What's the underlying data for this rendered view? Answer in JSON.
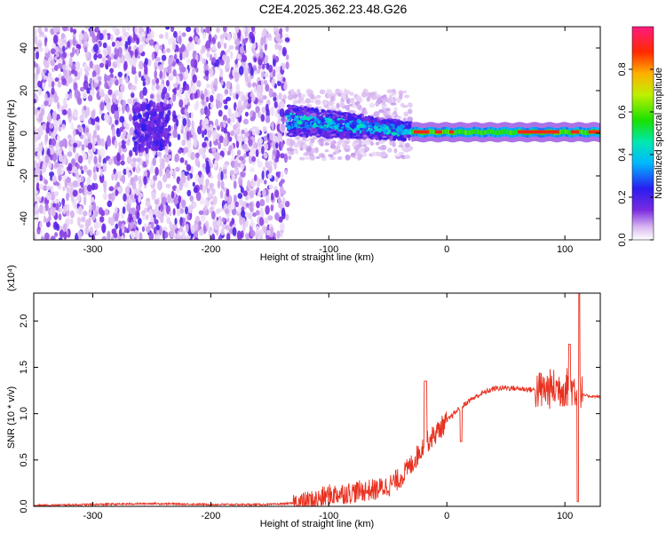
{
  "title": "C2E4.2025.362.23.48.G26",
  "chart_data": [
    {
      "type": "heatmap",
      "xlabel": "Height of straight line (km)",
      "ylabel": "Frequency (Hz)",
      "xlim": [
        -350,
        130
      ],
      "ylim": [
        -50,
        50
      ],
      "xticks": [
        -300,
        -200,
        -100,
        0,
        100
      ],
      "yticks": [
        -40,
        -20,
        0,
        20,
        40
      ],
      "colorbar": {
        "label": "Normalized spectral amplitude",
        "range": [
          0,
          1
        ],
        "ticks": [
          "0.0",
          "0.2",
          "0.4",
          "0.6",
          "0.8"
        ],
        "colormap": "rainbow (white-violet-blue-cyan-green-yellow-red)"
      },
      "regions": [
        {
          "x_range": [
            -350,
            -135
          ],
          "freq_range": [
            -50,
            50
          ],
          "amplitude": "0.0-0.2 noise"
        },
        {
          "x_range": [
            -265,
            -235
          ],
          "freq_range": [
            -8,
            14
          ],
          "amplitude": "0.1-0.2"
        },
        {
          "x_range": [
            -135,
            -30
          ],
          "freq_range": [
            -5,
            14
          ],
          "amplitude": "0.1-0.5 band"
        },
        {
          "x_range": [
            -30,
            130
          ],
          "freq_range": [
            -2,
            3
          ],
          "amplitude": "0.5-1.0 carrier"
        }
      ],
      "grid": false
    },
    {
      "type": "line",
      "xlabel": "Height of straight line (km)",
      "ylabel": "SNR (10 * v/v)",
      "yscale_note": "(x10⁴)",
      "xlim": [
        -350,
        130
      ],
      "ylim": [
        0,
        2.3
      ],
      "xticks": [
        -300,
        -200,
        -100,
        0,
        100
      ],
      "yticks": [
        "0.0",
        "0.5",
        "1.0",
        "1.5",
        "2.0"
      ],
      "series": [
        {
          "color": "#e8301f",
          "x": [
            -350,
            -300,
            -250,
            -200,
            -150,
            -120,
            -110,
            -100,
            -90,
            -80,
            -70,
            -60,
            -50,
            -40,
            -30,
            -20,
            -10,
            0,
            10,
            20,
            30,
            40,
            50,
            60,
            70,
            80,
            90,
            100,
            105,
            110,
            115,
            120,
            130
          ],
          "y": [
            0.01,
            0.02,
            0.03,
            0.02,
            0.02,
            0.04,
            0.07,
            0.12,
            0.14,
            0.15,
            0.17,
            0.18,
            0.22,
            0.3,
            0.45,
            0.65,
            0.78,
            0.92,
            1.05,
            1.15,
            1.22,
            1.27,
            1.28,
            1.27,
            1.26,
            1.25,
            1.27,
            1.28,
            1.3,
            1.25,
            1.2,
            1.19,
            1.18
          ]
        }
      ],
      "grid": false
    }
  ]
}
